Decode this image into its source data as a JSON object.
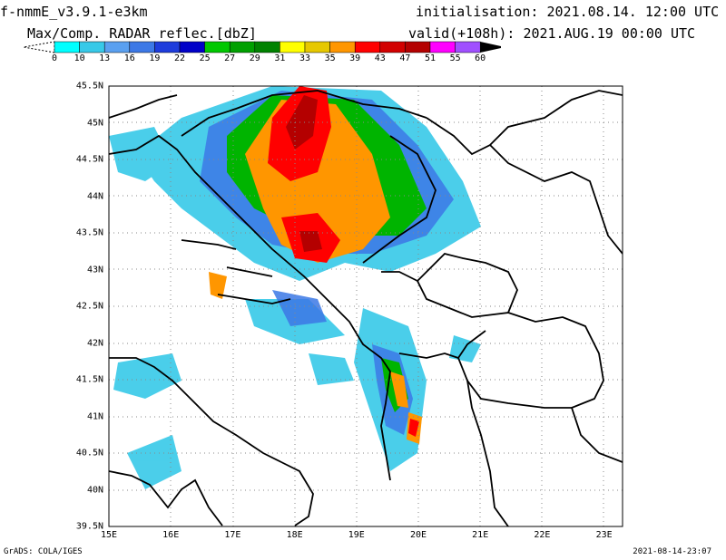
{
  "header": {
    "model": "f-nmmE_v3.9.1-e3km",
    "field": "Max/Comp. RADAR reflec.[dbZ]",
    "init_label": "initialisation:",
    "init_value": "2021.08.14. 12:00 UTC",
    "valid_label": "valid(+108h):",
    "valid_value": "2021.AUG.19 00:00 UTC"
  },
  "colorbar": {
    "ticks": [
      "0",
      "10",
      "13",
      "16",
      "19",
      "22",
      "25",
      "27",
      "29",
      "31",
      "33",
      "35",
      "39",
      "43",
      "47",
      "51",
      "55",
      "60"
    ],
    "colors": [
      "#00ffff",
      "#37c9e8",
      "#5aa0f0",
      "#3c78e6",
      "#1e3cdc",
      "#0000c8",
      "#00c800",
      "#00a000",
      "#008200",
      "#ffff00",
      "#e6c800",
      "#ff9600",
      "#ff0000",
      "#d20000",
      "#b40000",
      "#ff00ff",
      "#a050ff",
      "#000000"
    ]
  },
  "map": {
    "lat_labels": [
      "45.5N",
      "45N",
      "44.5N",
      "44N",
      "43.5N",
      "43N",
      "42.5N",
      "42N",
      "41.5N",
      "41N",
      "40.5N",
      "40N",
      "39.5N"
    ],
    "lon_labels": [
      "15E",
      "16E",
      "17E",
      "18E",
      "19E",
      "20E",
      "21E",
      "22E",
      "23E"
    ]
  },
  "footer": {
    "credit": "GrADS: COLA/IGES",
    "timestamp": "2021-08-14-23:07"
  }
}
